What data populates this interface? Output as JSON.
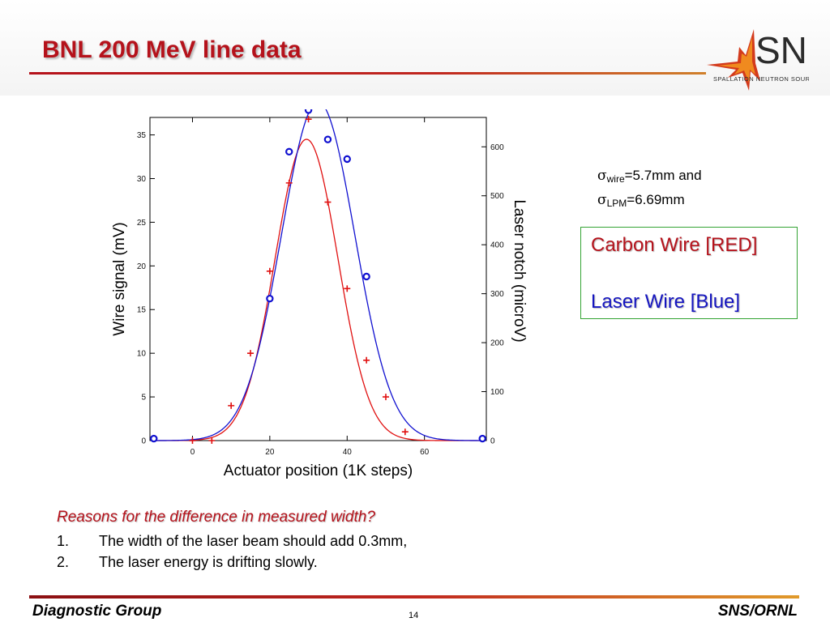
{
  "slide": {
    "title": "BNL 200 MeV line data",
    "page_number": "14"
  },
  "logo": {
    "name": "SNS",
    "subtitle": "SPALLATION NEUTRON SOURCE"
  },
  "sigma": {
    "wire": {
      "symbol": "σ",
      "sub": "wire",
      "text": "=5.7mm and"
    },
    "lpm": {
      "symbol": "σ",
      "sub": "LPM",
      "text": "=6.69mm"
    }
  },
  "legend": {
    "red": "Carbon Wire [RED]",
    "blue": "Laser Wire [Blue]",
    "border_color": "#33a333"
  },
  "reasons": {
    "title": "Reasons for the difference in measured width?",
    "items": [
      {
        "num": "1.",
        "text": "The width of the laser beam should add 0.3mm,"
      },
      {
        "num": "2.",
        "text": "The laser energy is drifting slowly."
      }
    ]
  },
  "footer": {
    "left": "Diagnostic Group",
    "right": "SNS/ORNL"
  },
  "colors": {
    "title_red": "#b5121b",
    "series_red": "#e01010",
    "series_blue": "#1010d0"
  },
  "chart_data": {
    "type": "scatter",
    "xlabel": "Actuator position (1K steps)",
    "ylabel_left": "Wire signal (mV)",
    "ylabel_right": "Laser notch (microV)",
    "xlim": [
      -11,
      76
    ],
    "ylim_left": [
      0,
      37
    ],
    "ylim_right": [
      0,
      660
    ],
    "x_ticks": [
      0,
      20,
      40,
      60
    ],
    "y_left_ticks": [
      0,
      5,
      10,
      15,
      20,
      25,
      30,
      35
    ],
    "y_right_ticks": [
      0,
      100,
      200,
      300,
      400,
      500,
      600
    ],
    "grid": false,
    "series": [
      {
        "axis": "left",
        "marker": "plus",
        "color": "#e01010",
        "points": [
          [
            0,
            0
          ],
          [
            5,
            0
          ],
          [
            10,
            4
          ],
          [
            15,
            10
          ],
          [
            20,
            19.4
          ],
          [
            25,
            29.5
          ],
          [
            30,
            36.8
          ],
          [
            35,
            27.3
          ],
          [
            40,
            17.4
          ],
          [
            45,
            9.2
          ],
          [
            50,
            5
          ],
          [
            55,
            1
          ]
        ],
        "fit": {
          "type": "gaussian",
          "amplitude": 34.5,
          "center": 29.5,
          "sigma": 8.1,
          "offset": 0
        }
      },
      {
        "axis": "right",
        "marker": "circle",
        "color": "#1010d0",
        "points": [
          [
            -10,
            4
          ],
          [
            20,
            290
          ],
          [
            25,
            590
          ],
          [
            30,
            675
          ],
          [
            35,
            615
          ],
          [
            40,
            575
          ],
          [
            45,
            335
          ],
          [
            75,
            4
          ]
        ],
        "fit": {
          "type": "gaussian",
          "amplitude": 692,
          "center": 32.5,
          "sigma": 9.5,
          "offset": 0
        }
      }
    ]
  }
}
